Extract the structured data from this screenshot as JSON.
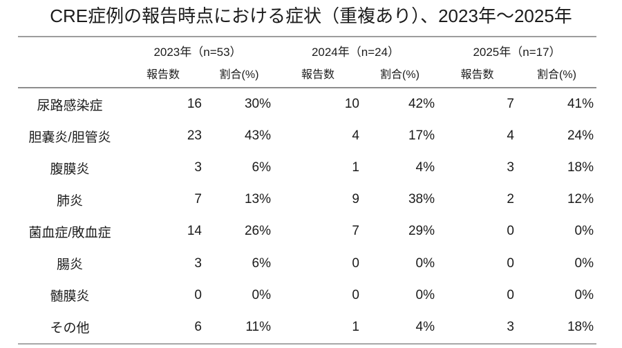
{
  "page": {
    "title": "CRE症例の報告時点における症状（重複あり）、2023年～2025年"
  },
  "headers": {
    "count_label": "報告数",
    "pct_label": "割合(%)"
  },
  "chart_data": {
    "type": "table",
    "title": "CRE症例の報告時点における症状（重複あり）、2023年～2025年",
    "column_groups": [
      {
        "label": "2023年（n=53）",
        "n": 53
      },
      {
        "label": "2024年（n=24）",
        "n": 24
      },
      {
        "label": "2025年（n=17）",
        "n": 17
      }
    ],
    "sub_columns": [
      "報告数",
      "割合(%)"
    ],
    "rows": [
      {
        "label": "尿路感染症",
        "counts": [
          16,
          10,
          7
        ],
        "percents": [
          "30%",
          "42%",
          "41%"
        ]
      },
      {
        "label": "胆嚢炎/胆管炎",
        "counts": [
          23,
          4,
          4
        ],
        "percents": [
          "43%",
          "17%",
          "24%"
        ]
      },
      {
        "label": "腹膜炎",
        "counts": [
          3,
          1,
          3
        ],
        "percents": [
          "6%",
          "4%",
          "18%"
        ]
      },
      {
        "label": "肺炎",
        "counts": [
          7,
          9,
          2
        ],
        "percents": [
          "13%",
          "38%",
          "12%"
        ]
      },
      {
        "label": "菌血症/敗血症",
        "counts": [
          14,
          7,
          0
        ],
        "percents": [
          "26%",
          "29%",
          "0%"
        ]
      },
      {
        "label": "腸炎",
        "counts": [
          3,
          0,
          0
        ],
        "percents": [
          "6%",
          "0%",
          "0%"
        ]
      },
      {
        "label": "髄膜炎",
        "counts": [
          0,
          0,
          0
        ],
        "percents": [
          "0%",
          "0%",
          "0%"
        ]
      },
      {
        "label": "その他",
        "counts": [
          6,
          1,
          3
        ],
        "percents": [
          "11%",
          "4%",
          "18%"
        ]
      }
    ]
  }
}
